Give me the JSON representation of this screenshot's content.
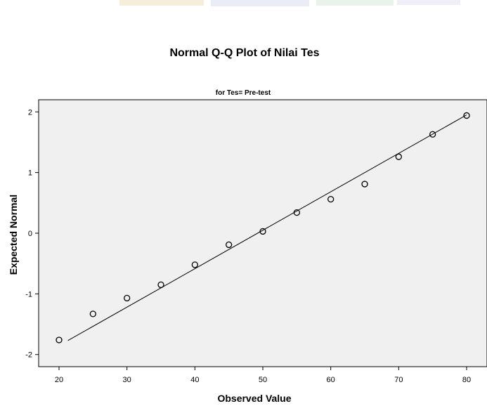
{
  "chart_data": {
    "type": "scatter",
    "title": "Normal Q-Q Plot of Nilai Tes",
    "subtitle": "for Tes= Pre-test",
    "xlabel": "Observed Value",
    "ylabel": "Expected Normal",
    "xlim": [
      17,
      83
    ],
    "ylim": [
      -2.2,
      2.2
    ],
    "xticks": [
      20,
      30,
      40,
      50,
      60,
      70,
      80
    ],
    "yticks": [
      -2,
      -1,
      0,
      1,
      2
    ],
    "grid": false,
    "points": [
      {
        "x": 20,
        "y": -1.76
      },
      {
        "x": 25,
        "y": -1.33
      },
      {
        "x": 30,
        "y": -1.07
      },
      {
        "x": 35,
        "y": -0.85
      },
      {
        "x": 40,
        "y": -0.52
      },
      {
        "x": 45,
        "y": -0.19
      },
      {
        "x": 50,
        "y": 0.03
      },
      {
        "x": 55,
        "y": 0.34
      },
      {
        "x": 60,
        "y": 0.56
      },
      {
        "x": 65,
        "y": 0.81
      },
      {
        "x": 70,
        "y": 1.26
      },
      {
        "x": 75,
        "y": 1.63
      },
      {
        "x": 80,
        "y": 1.94
      }
    ],
    "reference_line": {
      "x1": 21.3,
      "y1": -1.77,
      "x2": 80,
      "y2": 1.95
    },
    "colors": {
      "plot_background": "#f0f0f0",
      "marker": "#000000",
      "line": "#000000"
    }
  }
}
